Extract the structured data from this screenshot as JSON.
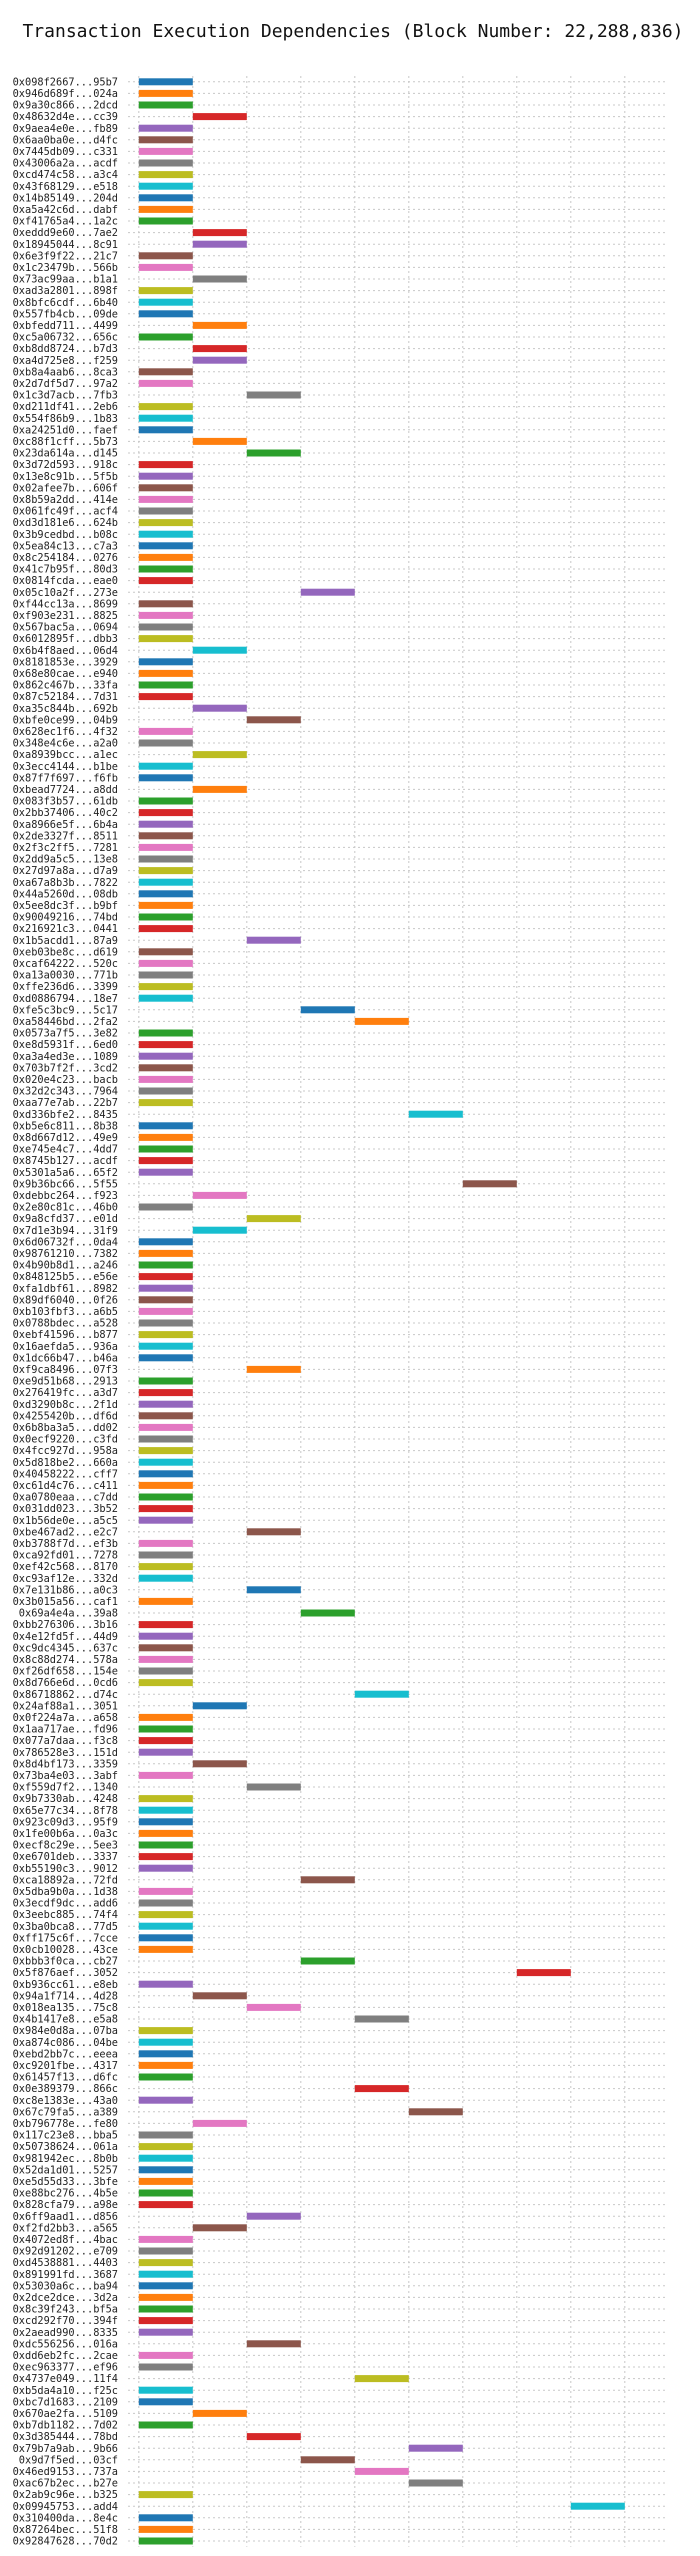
{
  "chart_data": {
    "type": "bar",
    "orientation": "horizontal-gantt",
    "title": "Transaction Execution Dependencies (Block Number: 22,288,836)",
    "xlabel": "",
    "ylabel": "",
    "xlim": [
      -0.2,
      9.8
    ],
    "xticks": [
      "0",
      "2",
      "4",
      "6",
      "8"
    ],
    "grid": true,
    "color_cycle": [
      "#1f77b4",
      "#ff7f0e",
      "#2ca02c",
      "#d62728",
      "#9467bd",
      "#8c564b",
      "#e377c2",
      "#7f7f7f",
      "#bcbd22",
      "#17becf"
    ],
    "transactions": [
      {
        "label": "0x098f2667...95b7",
        "start": 0
      },
      {
        "label": "0x946d689f...024a",
        "start": 0
      },
      {
        "label": "0x9a30c866...2dcd",
        "start": 0
      },
      {
        "label": "0x48632d4e...cc39",
        "start": 1
      },
      {
        "label": "0x9aea4e0e...fb89",
        "start": 0
      },
      {
        "label": "0x6aa0ba0e...d4fc",
        "start": 0
      },
      {
        "label": "0x7445db09...c331",
        "start": 0
      },
      {
        "label": "0x43006a2a...acdf",
        "start": 0
      },
      {
        "label": "0xcd474c58...a3c4",
        "start": 0
      },
      {
        "label": "0x43f68129...e518",
        "start": 0
      },
      {
        "label": "0x14b85149...204d",
        "start": 0
      },
      {
        "label": "0xa5a42c6d...dabf",
        "start": 0
      },
      {
        "label": "0xf41765a4...1a2c",
        "start": 0
      },
      {
        "label": "0xeddd9e60...7ae2",
        "start": 1
      },
      {
        "label": "0x18945044...8c91",
        "start": 1
      },
      {
        "label": "0x6e3f9f22...21c7",
        "start": 0
      },
      {
        "label": "0x1c23479b...566b",
        "start": 0
      },
      {
        "label": "0x73ac99aa...b1a1",
        "start": 1
      },
      {
        "label": "0xad3a2801...898f",
        "start": 0
      },
      {
        "label": "0x8bfc6cdf...6b40",
        "start": 0
      },
      {
        "label": "0x557fb4cb...09de",
        "start": 0
      },
      {
        "label": "0xbfedd711...4499",
        "start": 1
      },
      {
        "label": "0xc5a06732...656c",
        "start": 0
      },
      {
        "label": "0xb8dd8724...b7d3",
        "start": 1
      },
      {
        "label": "0xa4d725e8...f259",
        "start": 1
      },
      {
        "label": "0xb8a4aab6...8ca3",
        "start": 0
      },
      {
        "label": "0x2d7df5d7...97a2",
        "start": 0
      },
      {
        "label": "0x1c3d7acb...7fb3",
        "start": 2
      },
      {
        "label": "0xd211df41...2eb6",
        "start": 0
      },
      {
        "label": "0x554f86b9...1b83",
        "start": 0
      },
      {
        "label": "0xa24251d0...faef",
        "start": 0
      },
      {
        "label": "0xc88f1cff...5b73",
        "start": 1
      },
      {
        "label": "0x23da614a...d145",
        "start": 2
      },
      {
        "label": "0x3d72d593...918c",
        "start": 0
      },
      {
        "label": "0x13e8c91b...5f5b",
        "start": 0
      },
      {
        "label": "0x02afee7b...606f",
        "start": 0
      },
      {
        "label": "0x8b59a2dd...414e",
        "start": 0
      },
      {
        "label": "0x061fc49f...acf4",
        "start": 0
      },
      {
        "label": "0xd3d181e6...624b",
        "start": 0
      },
      {
        "label": "0x3b9cedbd...b08c",
        "start": 0
      },
      {
        "label": "0x5ea84c13...c7a3",
        "start": 0
      },
      {
        "label": "0x8c254184...0276",
        "start": 0
      },
      {
        "label": "0x41c7b95f...80d3",
        "start": 0
      },
      {
        "label": "0x0814fcda...eae0",
        "start": 0
      },
      {
        "label": "0x05c10a2f...273e",
        "start": 3
      },
      {
        "label": "0xf44cc13a...8699",
        "start": 0
      },
      {
        "label": "0xf903e231...8825",
        "start": 0
      },
      {
        "label": "0x567bac5a...0694",
        "start": 0
      },
      {
        "label": "0x6012895f...dbb3",
        "start": 0
      },
      {
        "label": "0x6b4f8aed...06d4",
        "start": 1
      },
      {
        "label": "0x8181853e...3929",
        "start": 0
      },
      {
        "label": "0x68e80cae...e940",
        "start": 0
      },
      {
        "label": "0x862c467b...33fa",
        "start": 0
      },
      {
        "label": "0x87c52184...7d31",
        "start": 0
      },
      {
        "label": "0xa35c844b...692b",
        "start": 1
      },
      {
        "label": "0xbfe0ce99...04b9",
        "start": 2
      },
      {
        "label": "0x628ec1f6...4f32",
        "start": 0
      },
      {
        "label": "0x348e4c6e...a2a0",
        "start": 0
      },
      {
        "label": "0xa8939bcc...a1ec",
        "start": 1
      },
      {
        "label": "0x3ecc4144...b1be",
        "start": 0
      },
      {
        "label": "0x87f7f697...f6fb",
        "start": 0
      },
      {
        "label": "0xbead7724...a8dd",
        "start": 1
      },
      {
        "label": "0x083f3b57...61db",
        "start": 0
      },
      {
        "label": "0x2bb37406...40c2",
        "start": 0
      },
      {
        "label": "0xa8966e5f...6b4a",
        "start": 0
      },
      {
        "label": "0x2de3327f...8511",
        "start": 0
      },
      {
        "label": "0x2f3c2ff5...7281",
        "start": 0
      },
      {
        "label": "0x2dd9a5c5...13e8",
        "start": 0
      },
      {
        "label": "0x27d97a8a...d7a9",
        "start": 0
      },
      {
        "label": "0xa67a8b3b...7822",
        "start": 0
      },
      {
        "label": "0x44a5260d...08db",
        "start": 0
      },
      {
        "label": "0x5ee8dc3f...b9bf",
        "start": 0
      },
      {
        "label": "0x90049216...74bd",
        "start": 0
      },
      {
        "label": "0x216921c3...0441",
        "start": 0
      },
      {
        "label": "0x1b5acdd1...87a9",
        "start": 2
      },
      {
        "label": "0xeb03be8c...d619",
        "start": 0
      },
      {
        "label": "0xcaf64222...520c",
        "start": 0
      },
      {
        "label": "0xa13a0030...771b",
        "start": 0
      },
      {
        "label": "0xffe236d6...3399",
        "start": 0
      },
      {
        "label": "0xd0886794...18e7",
        "start": 0
      },
      {
        "label": "0xfe5c3bc9...5c17",
        "start": 3
      },
      {
        "label": "0xa58446bd...2fa2",
        "start": 4
      },
      {
        "label": "0x0573a7f5...3e82",
        "start": 0
      },
      {
        "label": "0xe8d5931f...6ed0",
        "start": 0
      },
      {
        "label": "0xa3a4ed3e...1089",
        "start": 0
      },
      {
        "label": "0x703b7f2f...3cd2",
        "start": 0
      },
      {
        "label": "0x020e4c23...bacb",
        "start": 0
      },
      {
        "label": "0x32d2c343...7964",
        "start": 0
      },
      {
        "label": "0xaa77e7ab...22b7",
        "start": 0
      },
      {
        "label": "0xd336bfe2...8435",
        "start": 5
      },
      {
        "label": "0xb5e6c811...8b38",
        "start": 0
      },
      {
        "label": "0x8d667d12...49e9",
        "start": 0
      },
      {
        "label": "0xe745e4c7...4dd7",
        "start": 0
      },
      {
        "label": "0x8745b127...acdf",
        "start": 0
      },
      {
        "label": "0x5301a5a6...65f2",
        "start": 0
      },
      {
        "label": "0x9b36bc66...5f55",
        "start": 6
      },
      {
        "label": "0xdebbc264...f923",
        "start": 1
      },
      {
        "label": "0x2e80c81c...46b0",
        "start": 0
      },
      {
        "label": "0x9a8cfd37...e01d",
        "start": 2
      },
      {
        "label": "0x7d1e3b94...31f9",
        "start": 1
      },
      {
        "label": "0x6d06732f...0da4",
        "start": 0
      },
      {
        "label": "0x98761210...7382",
        "start": 0
      },
      {
        "label": "0x4b90b8d1...a246",
        "start": 0
      },
      {
        "label": "0x848125b5...e56e",
        "start": 0
      },
      {
        "label": "0xfa1dbf61...8982",
        "start": 0
      },
      {
        "label": "0x89df6040...0f26",
        "start": 0
      },
      {
        "label": "0xb103fbf3...a6b5",
        "start": 0
      },
      {
        "label": "0x0788bdec...a528",
        "start": 0
      },
      {
        "label": "0xebf41596...b877",
        "start": 0
      },
      {
        "label": "0x16aefda5...936a",
        "start": 0
      },
      {
        "label": "0x1dc66b47...b46a",
        "start": 0
      },
      {
        "label": "0xf9ca8496...07f3",
        "start": 2
      },
      {
        "label": "0xe9d51b68...2913",
        "start": 0
      },
      {
        "label": "0x276419fc...a3d7",
        "start": 0
      },
      {
        "label": "0xd3290b8c...2f1d",
        "start": 0
      },
      {
        "label": "0x4255420b...df6d",
        "start": 0
      },
      {
        "label": "0x6b8ba3a5...dd02",
        "start": 0
      },
      {
        "label": "0x0ecf9220...c3fd",
        "start": 0
      },
      {
        "label": "0x4fcc927d...958a",
        "start": 0
      },
      {
        "label": "0x5d818be2...660a",
        "start": 0
      },
      {
        "label": "0x40458222...cff7",
        "start": 0
      },
      {
        "label": "0xc61d4c76...c411",
        "start": 0
      },
      {
        "label": "0xa0780eaa...c7dd",
        "start": 0
      },
      {
        "label": "0x031dd023...3b52",
        "start": 0
      },
      {
        "label": "0x1b56de0e...a5c5",
        "start": 0
      },
      {
        "label": "0xbe467ad2...e2c7",
        "start": 2
      },
      {
        "label": "0xb3788f7d...ef3b",
        "start": 0
      },
      {
        "label": "0xca92fd01...7278",
        "start": 0
      },
      {
        "label": "0xef42c568...8170",
        "start": 0
      },
      {
        "label": "0xc93af12e...332d",
        "start": 0
      },
      {
        "label": "0x7e131b86...a0c3",
        "start": 2
      },
      {
        "label": "0x3b015a56...caf1",
        "start": 0
      },
      {
        "label": "0x69a4e4a...39a8",
        "start": 3
      },
      {
        "label": "0xbb276306...3b16",
        "start": 0
      },
      {
        "label": "0x4e12fd5f...44d9",
        "start": 0
      },
      {
        "label": "0xc9dc4345...637c",
        "start": 0
      },
      {
        "label": "0x8c88d274...578a",
        "start": 0
      },
      {
        "label": "0xf26df658...154e",
        "start": 0
      },
      {
        "label": "0x8d766e6d...0cd6",
        "start": 0
      },
      {
        "label": "0x86718862...d74c",
        "start": 4
      },
      {
        "label": "0x24af88a1...3051",
        "start": 1
      },
      {
        "label": "0x0f224a7a...a658",
        "start": 0
      },
      {
        "label": "0x1aa717ae...fd96",
        "start": 0
      },
      {
        "label": "0x077a7daa...f3c8",
        "start": 0
      },
      {
        "label": "0x786528e3...151d",
        "start": 0
      },
      {
        "label": "0x8d4bf173...3359",
        "start": 1
      },
      {
        "label": "0x73ba4e03...3abf",
        "start": 0
      },
      {
        "label": "0xf559d7f2...1340",
        "start": 2
      },
      {
        "label": "0x9b7330ab...4248",
        "start": 0
      },
      {
        "label": "0x65e77c34...8f78",
        "start": 0
      },
      {
        "label": "0x923c09d3...95f9",
        "start": 0
      },
      {
        "label": "0x1fe00b6a...0a3c",
        "start": 0
      },
      {
        "label": "0xecf8c29e...5ee3",
        "start": 0
      },
      {
        "label": "0xe6701deb...3337",
        "start": 0
      },
      {
        "label": "0xb55190c3...9012",
        "start": 0
      },
      {
        "label": "0xca18892a...72fd",
        "start": 3
      },
      {
        "label": "0x5dba9b0a...1d38",
        "start": 0
      },
      {
        "label": "0x3ecdf9dc...add6",
        "start": 0
      },
      {
        "label": "0x3eebc885...74f4",
        "start": 0
      },
      {
        "label": "0x3ba0bca8...77d5",
        "start": 0
      },
      {
        "label": "0xff175c6f...7cce",
        "start": 0
      },
      {
        "label": "0x0cb10028...43ce",
        "start": 0
      },
      {
        "label": "0xbbb3f0ca...cb27",
        "start": 3
      },
      {
        "label": "0x5f876aef...3052",
        "start": 7
      },
      {
        "label": "0xb936cc61...e8eb",
        "start": 0
      },
      {
        "label": "0x94a1f714...4d28",
        "start": 1
      },
      {
        "label": "0x018ea135...75c8",
        "start": 2
      },
      {
        "label": "0x4b1417e8...e5a8",
        "start": 4
      },
      {
        "label": "0x984e0d8a...07ba",
        "start": 0
      },
      {
        "label": "0xa874c086...04be",
        "start": 0
      },
      {
        "label": "0xebd2bb7c...eeea",
        "start": 0
      },
      {
        "label": "0xc9201fbe...4317",
        "start": 0
      },
      {
        "label": "0x61457f13...d6fc",
        "start": 0
      },
      {
        "label": "0x0e389379...866c",
        "start": 4
      },
      {
        "label": "0xc8e1383e...43a0",
        "start": 0
      },
      {
        "label": "0x67c79fa5...a389",
        "start": 5
      },
      {
        "label": "0xb796778e...fe80",
        "start": 1
      },
      {
        "label": "0x117c23e8...bba5",
        "start": 0
      },
      {
        "label": "0x50738624...061a",
        "start": 0
      },
      {
        "label": "0x981942ec...8b0b",
        "start": 0
      },
      {
        "label": "0x52da1d01...5257",
        "start": 0
      },
      {
        "label": "0xe5d55d33...3bfe",
        "start": 0
      },
      {
        "label": "0xe88bc276...4b5e",
        "start": 0
      },
      {
        "label": "0x828cfa79...a98e",
        "start": 0
      },
      {
        "label": "0x6ff9aad1...d856",
        "start": 2
      },
      {
        "label": "0xf2fd2bb3...a565",
        "start": 1
      },
      {
        "label": "0x4072ed8f...4bac",
        "start": 0
      },
      {
        "label": "0x92d91202...e709",
        "start": 0
      },
      {
        "label": "0xd4538881...4403",
        "start": 0
      },
      {
        "label": "0x891991fd...3687",
        "start": 0
      },
      {
        "label": "0x53030a6c...ba94",
        "start": 0
      },
      {
        "label": "0x2dce2dce...3d2a",
        "start": 0
      },
      {
        "label": "0x8c39f243...bf5a",
        "start": 0
      },
      {
        "label": "0xcd292f70...394f",
        "start": 0
      },
      {
        "label": "0x2aead990...8335",
        "start": 0
      },
      {
        "label": "0xdc556256...016a",
        "start": 2
      },
      {
        "label": "0xdd6eb2fc...2cae",
        "start": 0
      },
      {
        "label": "0xec963377...ef96",
        "start": 0
      },
      {
        "label": "0x4737e049...11f4",
        "start": 4
      },
      {
        "label": "0xb5da4a10...f25c",
        "start": 0
      },
      {
        "label": "0xbc7d1683...2109",
        "start": 0
      },
      {
        "label": "0x670ae2fa...5109",
        "start": 1
      },
      {
        "label": "0xb7db1182...7d02",
        "start": 0
      },
      {
        "label": "0x3d385444...78bd",
        "start": 2
      },
      {
        "label": "0x79b7a9ab...9b66",
        "start": 5
      },
      {
        "label": "0x9d7f5ed...03cf",
        "start": 3
      },
      {
        "label": "0x46ed9153...737a",
        "start": 4
      },
      {
        "label": "0xac67b2ec...b27e",
        "start": 5
      },
      {
        "label": "0x2ab9c96e...b325",
        "start": 0
      },
      {
        "label": "0x09945753...add4",
        "start": 8
      },
      {
        "label": "0x310400da...8e4c",
        "start": 0
      },
      {
        "label": "0x87264bec...51f8",
        "start": 0
      },
      {
        "label": "0x92847628...70d2",
        "start": 0
      }
    ]
  }
}
